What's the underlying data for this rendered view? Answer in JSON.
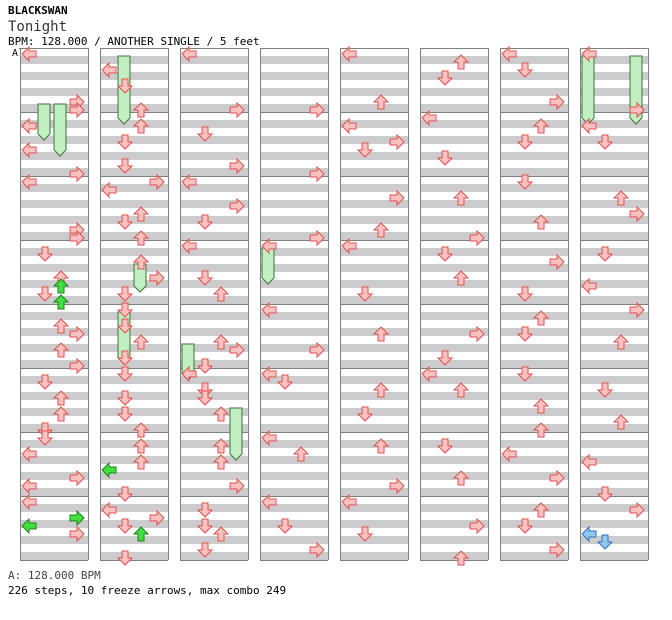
{
  "header": {
    "artist": "BLACKSWAN",
    "title": "Tonight",
    "meta": "BPM: 128.000 / ANOTHER SINGLE / 5 feet"
  },
  "segment_label": "A",
  "footer": {
    "bpm_line": "A: 128.000 BPM",
    "stats": "226 steps, 10 freeze arrows, max combo 249"
  },
  "colors": {
    "stripe": "#cccccc",
    "border": "#808080",
    "arrow_red_fill": "#ffc0c0",
    "arrow_red_stroke": "#e05050",
    "arrow_green_fill": "#40e040",
    "arrow_green_stroke": "#208020",
    "arrow_blue_fill": "#90c8f0",
    "arrow_blue_stroke": "#3070c0",
    "freeze_fill": "#c0f0c0",
    "freeze_stroke": "#407040"
  },
  "step_chart": {
    "panel_order": [
      "left",
      "down",
      "up",
      "right"
    ],
    "arrow_icons": {
      "left": "left-arrow-icon",
      "down": "down-arrow-icon",
      "up": "up-arrow-icon",
      "right": "right-arrow-icon"
    },
    "columns": 8,
    "measures_per_column": 8,
    "rows_per_measure": 8,
    "notes": [
      [
        0,
        0,
        0,
        "L",
        "r"
      ],
      [
        0,
        0,
        6,
        "R",
        "r"
      ],
      [
        0,
        0,
        7,
        "R",
        "r"
      ],
      [
        0,
        1,
        1,
        "L",
        "r"
      ],
      [
        0,
        1,
        4,
        "L",
        "r"
      ],
      [
        0,
        1,
        7,
        "R",
        "r"
      ],
      [
        0,
        2,
        0,
        "L",
        "r"
      ],
      [
        0,
        2,
        6,
        "R",
        "r"
      ],
      [
        0,
        2,
        7,
        "R",
        "r"
      ],
      [
        0,
        3,
        1,
        "D",
        "r"
      ],
      [
        0,
        3,
        4,
        "U",
        "r"
      ],
      [
        0,
        3,
        5,
        "U",
        "g"
      ],
      [
        0,
        3,
        6,
        "D",
        "r"
      ],
      [
        0,
        3,
        7,
        "U",
        "g"
      ],
      [
        0,
        4,
        2,
        "U",
        "r"
      ],
      [
        0,
        4,
        3,
        "R",
        "r"
      ],
      [
        0,
        4,
        5,
        "U",
        "r"
      ],
      [
        0,
        4,
        7,
        "R",
        "r"
      ],
      [
        0,
        5,
        1,
        "D",
        "r"
      ],
      [
        0,
        5,
        3,
        "U",
        "r"
      ],
      [
        0,
        5,
        5,
        "U",
        "r"
      ],
      [
        0,
        5,
        7,
        "D",
        "r"
      ],
      [
        0,
        6,
        0,
        "D",
        "r"
      ],
      [
        0,
        6,
        2,
        "L",
        "r"
      ],
      [
        0,
        6,
        5,
        "R",
        "r"
      ],
      [
        0,
        6,
        6,
        "L",
        "r"
      ],
      [
        0,
        7,
        0,
        "L",
        "r"
      ],
      [
        0,
        7,
        2,
        "R",
        "g"
      ],
      [
        0,
        7,
        3,
        "L",
        "g"
      ],
      [
        0,
        7,
        4,
        "R",
        "r"
      ],
      [
        1,
        0,
        2,
        "L",
        "r"
      ],
      [
        1,
        0,
        4,
        "D",
        "r"
      ],
      [
        1,
        0,
        7,
        "U",
        "r"
      ],
      [
        1,
        1,
        1,
        "U",
        "r"
      ],
      [
        1,
        1,
        3,
        "D",
        "r"
      ],
      [
        1,
        1,
        6,
        "D",
        "r"
      ],
      [
        1,
        2,
        0,
        "R",
        "r"
      ],
      [
        1,
        2,
        1,
        "L",
        "r"
      ],
      [
        1,
        2,
        4,
        "U",
        "r"
      ],
      [
        1,
        2,
        5,
        "D",
        "r"
      ],
      [
        1,
        2,
        7,
        "U",
        "r"
      ],
      [
        1,
        3,
        2,
        "U",
        "r"
      ],
      [
        1,
        3,
        4,
        "R",
        "r"
      ],
      [
        1,
        3,
        6,
        "D",
        "r"
      ],
      [
        1,
        4,
        0,
        "D",
        "r"
      ],
      [
        1,
        4,
        2,
        "D",
        "r"
      ],
      [
        1,
        4,
        4,
        "U",
        "r"
      ],
      [
        1,
        4,
        6,
        "D",
        "r"
      ],
      [
        1,
        5,
        0,
        "D",
        "r"
      ],
      [
        1,
        5,
        3,
        "D",
        "r"
      ],
      [
        1,
        5,
        5,
        "D",
        "r"
      ],
      [
        1,
        5,
        7,
        "U",
        "r"
      ],
      [
        1,
        6,
        1,
        "U",
        "r"
      ],
      [
        1,
        6,
        3,
        "U",
        "r"
      ],
      [
        1,
        6,
        4,
        "L",
        "g"
      ],
      [
        1,
        6,
        7,
        "D",
        "r"
      ],
      [
        1,
        7,
        1,
        "L",
        "r"
      ],
      [
        1,
        7,
        2,
        "R",
        "r"
      ],
      [
        1,
        7,
        3,
        "D",
        "r"
      ],
      [
        1,
        7,
        4,
        "U",
        "g"
      ],
      [
        1,
        7,
        7,
        "D",
        "r"
      ],
      [
        2,
        0,
        0,
        "L",
        "r"
      ],
      [
        2,
        0,
        7,
        "R",
        "r"
      ],
      [
        2,
        1,
        2,
        "D",
        "r"
      ],
      [
        2,
        1,
        6,
        "R",
        "r"
      ],
      [
        2,
        2,
        0,
        "L",
        "r"
      ],
      [
        2,
        2,
        3,
        "R",
        "r"
      ],
      [
        2,
        2,
        5,
        "D",
        "r"
      ],
      [
        2,
        3,
        0,
        "L",
        "r"
      ],
      [
        2,
        3,
        4,
        "D",
        "r"
      ],
      [
        2,
        3,
        6,
        "U",
        "r"
      ],
      [
        2,
        4,
        4,
        "U",
        "r"
      ],
      [
        2,
        4,
        5,
        "R",
        "r"
      ],
      [
        2,
        4,
        7,
        "D",
        "r"
      ],
      [
        2,
        5,
        0,
        "L",
        "r"
      ],
      [
        2,
        5,
        2,
        "D",
        "r"
      ],
      [
        2,
        5,
        3,
        "D",
        "r"
      ],
      [
        2,
        5,
        5,
        "U",
        "r"
      ],
      [
        2,
        6,
        1,
        "U",
        "r"
      ],
      [
        2,
        6,
        3,
        "U",
        "r"
      ],
      [
        2,
        6,
        6,
        "R",
        "r"
      ],
      [
        2,
        7,
        1,
        "D",
        "r"
      ],
      [
        2,
        7,
        3,
        "D",
        "r"
      ],
      [
        2,
        7,
        4,
        "U",
        "r"
      ],
      [
        2,
        7,
        6,
        "D",
        "r"
      ],
      [
        3,
        0,
        7,
        "R",
        "r"
      ],
      [
        3,
        1,
        7,
        "R",
        "r"
      ],
      [
        3,
        2,
        7,
        "R",
        "r"
      ],
      [
        3,
        3,
        0,
        "L",
        "r"
      ],
      [
        3,
        4,
        0,
        "L",
        "r"
      ],
      [
        3,
        4,
        5,
        "R",
        "r"
      ],
      [
        3,
        5,
        0,
        "L",
        "r"
      ],
      [
        3,
        5,
        1,
        "D",
        "r"
      ],
      [
        3,
        6,
        0,
        "L",
        "r"
      ],
      [
        3,
        6,
        2,
        "U",
        "r"
      ],
      [
        3,
        7,
        0,
        "L",
        "r"
      ],
      [
        3,
        7,
        3,
        "D",
        "r"
      ],
      [
        3,
        7,
        6,
        "R",
        "r"
      ],
      [
        4,
        0,
        0,
        "L",
        "r"
      ],
      [
        4,
        0,
        6,
        "U",
        "r"
      ],
      [
        4,
        1,
        1,
        "L",
        "r"
      ],
      [
        4,
        1,
        3,
        "R",
        "r"
      ],
      [
        4,
        1,
        4,
        "D",
        "r"
      ],
      [
        4,
        2,
        2,
        "R",
        "r"
      ],
      [
        4,
        2,
        6,
        "U",
        "r"
      ],
      [
        4,
        3,
        0,
        "L",
        "r"
      ],
      [
        4,
        3,
        6,
        "D",
        "r"
      ],
      [
        4,
        4,
        3,
        "U",
        "r"
      ],
      [
        4,
        5,
        2,
        "U",
        "r"
      ],
      [
        4,
        5,
        5,
        "D",
        "r"
      ],
      [
        4,
        6,
        1,
        "U",
        "r"
      ],
      [
        4,
        6,
        6,
        "R",
        "r"
      ],
      [
        4,
        7,
        0,
        "L",
        "r"
      ],
      [
        4,
        7,
        4,
        "D",
        "r"
      ],
      [
        5,
        0,
        1,
        "U",
        "r"
      ],
      [
        5,
        0,
        3,
        "D",
        "r"
      ],
      [
        5,
        1,
        0,
        "L",
        "r"
      ],
      [
        5,
        1,
        5,
        "D",
        "r"
      ],
      [
        5,
        2,
        2,
        "U",
        "r"
      ],
      [
        5,
        2,
        7,
        "R",
        "r"
      ],
      [
        5,
        3,
        1,
        "D",
        "r"
      ],
      [
        5,
        3,
        4,
        "U",
        "r"
      ],
      [
        5,
        4,
        3,
        "R",
        "r"
      ],
      [
        5,
        4,
        6,
        "D",
        "r"
      ],
      [
        5,
        5,
        0,
        "L",
        "r"
      ],
      [
        5,
        5,
        2,
        "U",
        "r"
      ],
      [
        5,
        6,
        1,
        "D",
        "r"
      ],
      [
        5,
        6,
        5,
        "U",
        "r"
      ],
      [
        5,
        7,
        3,
        "R",
        "r"
      ],
      [
        5,
        7,
        7,
        "U",
        "r"
      ],
      [
        6,
        0,
        0,
        "L",
        "r"
      ],
      [
        6,
        0,
        2,
        "D",
        "r"
      ],
      [
        6,
        0,
        6,
        "R",
        "r"
      ],
      [
        6,
        1,
        1,
        "U",
        "r"
      ],
      [
        6,
        1,
        3,
        "D",
        "r"
      ],
      [
        6,
        2,
        0,
        "D",
        "r"
      ],
      [
        6,
        2,
        5,
        "U",
        "r"
      ],
      [
        6,
        3,
        2,
        "R",
        "r"
      ],
      [
        6,
        3,
        6,
        "D",
        "r"
      ],
      [
        6,
        4,
        1,
        "U",
        "r"
      ],
      [
        6,
        4,
        3,
        "D",
        "r"
      ],
      [
        6,
        5,
        0,
        "D",
        "r"
      ],
      [
        6,
        5,
        4,
        "U",
        "r"
      ],
      [
        6,
        5,
        7,
        "U",
        "r"
      ],
      [
        6,
        6,
        2,
        "L",
        "r"
      ],
      [
        6,
        6,
        5,
        "R",
        "r"
      ],
      [
        6,
        7,
        1,
        "U",
        "r"
      ],
      [
        6,
        7,
        3,
        "D",
        "r"
      ],
      [
        6,
        7,
        6,
        "R",
        "r"
      ],
      [
        7,
        0,
        0,
        "L",
        "r"
      ],
      [
        7,
        0,
        7,
        "R",
        "r"
      ],
      [
        7,
        1,
        1,
        "L",
        "r"
      ],
      [
        7,
        1,
        3,
        "D",
        "r"
      ],
      [
        7,
        2,
        2,
        "U",
        "r"
      ],
      [
        7,
        2,
        4,
        "R",
        "r"
      ],
      [
        7,
        3,
        1,
        "D",
        "r"
      ],
      [
        7,
        3,
        5,
        "L",
        "r"
      ],
      [
        7,
        4,
        0,
        "R",
        "r"
      ],
      [
        7,
        4,
        4,
        "U",
        "r"
      ],
      [
        7,
        5,
        2,
        "D",
        "r"
      ],
      [
        7,
        5,
        6,
        "U",
        "r"
      ],
      [
        7,
        6,
        3,
        "L",
        "r"
      ],
      [
        7,
        6,
        7,
        "D",
        "r"
      ],
      [
        7,
        7,
        1,
        "R",
        "r"
      ],
      [
        7,
        7,
        4,
        "L",
        "b"
      ],
      [
        7,
        7,
        5,
        "D",
        "b"
      ]
    ],
    "freezes": [
      [
        0,
        1,
        6,
        10,
        "D"
      ],
      [
        1,
        2,
        6,
        12,
        "U"
      ],
      [
        4,
        6,
        0,
        8,
        "D"
      ],
      [
        8,
        2,
        26,
        29,
        "U"
      ],
      [
        12,
        1,
        32,
        38,
        "D"
      ],
      [
        16,
        3,
        44,
        50,
        "D"
      ],
      [
        20,
        0,
        36,
        40,
        "L"
      ],
      [
        24,
        0,
        24,
        28,
        "U"
      ],
      [
        56,
        0,
        0,
        8,
        "L"
      ],
      [
        56,
        3,
        0,
        8,
        "R"
      ]
    ]
  }
}
